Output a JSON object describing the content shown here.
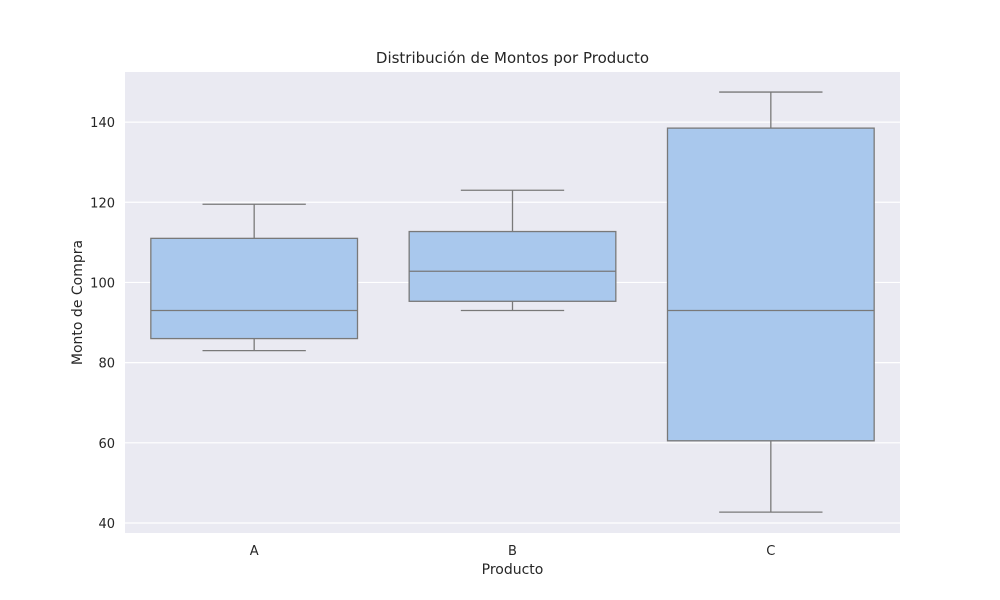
{
  "chart_data": {
    "type": "box",
    "title": "Distribución de Montos por Producto",
    "xlabel": "Producto",
    "ylabel": "Monto de Compra",
    "categories": [
      "A",
      "B",
      "C"
    ],
    "boxes": [
      {
        "category": "A",
        "whisker_low": 83,
        "q1": 86,
        "median": 93,
        "q3": 111,
        "whisker_high": 119.5
      },
      {
        "category": "B",
        "whisker_low": 93,
        "q1": 95.3,
        "median": 102.8,
        "q3": 112.7,
        "whisker_high": 123
      },
      {
        "category": "C",
        "whisker_low": 42.7,
        "q1": 60.5,
        "median": 93,
        "q3": 138.5,
        "whisker_high": 147.5
      }
    ],
    "ylim": [
      37.5,
      152.5
    ],
    "yticks": [
      40,
      60,
      80,
      100,
      120,
      140
    ],
    "grid": true,
    "colors": {
      "box_fill": "#a9c8ed",
      "box_edge": "#797979",
      "plot_bg": "#eaeaf2",
      "grid": "#ffffff"
    }
  }
}
